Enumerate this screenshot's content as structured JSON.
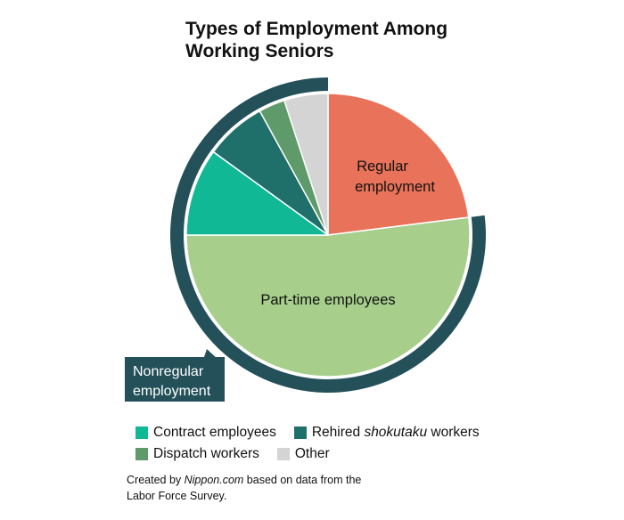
{
  "title": {
    "line1": "Types of Employment Among",
    "line2": "Working Seniors"
  },
  "chart_data": {
    "type": "pie",
    "title": "Types of Employment Among Working Seniors",
    "slices": [
      {
        "key": "regular",
        "label_line1": "Regular",
        "label_line2": "employment",
        "value": 23.0,
        "color": "#E8735A"
      },
      {
        "key": "part_time",
        "label": "Part-time employees",
        "value": 52.0,
        "color": "#A7CF8B"
      },
      {
        "key": "contract",
        "label": "Contract employees",
        "value": 10.0,
        "color": "#10B896"
      },
      {
        "key": "rehired",
        "label": "Rehired shokutaku workers",
        "value": 7.0,
        "color": "#1F6F6B"
      },
      {
        "key": "dispatch",
        "label": "Dispatch workers",
        "value": 3.0,
        "color": "#5E9A6A"
      },
      {
        "key": "other",
        "label": "Other",
        "value": 5.0,
        "color": "#D4D4D4"
      }
    ],
    "group_annotation": {
      "label_line1": "Nonregular",
      "label_line2": "employment",
      "covers": [
        "part_time",
        "contract",
        "rehired",
        "dispatch",
        "other"
      ],
      "color": "#24505A"
    }
  },
  "legend": {
    "contract": "Contract employees",
    "rehired_prefix": "Rehired ",
    "rehired_em": "shokutaku",
    "rehired_suffix": " workers",
    "dispatch": "Dispatch workers",
    "other": "Other"
  },
  "credit": {
    "prefix": "Created by ",
    "source_em": "Nippon.com",
    "suffix": " based on data from the",
    "line2": "Labor Force Survey."
  }
}
